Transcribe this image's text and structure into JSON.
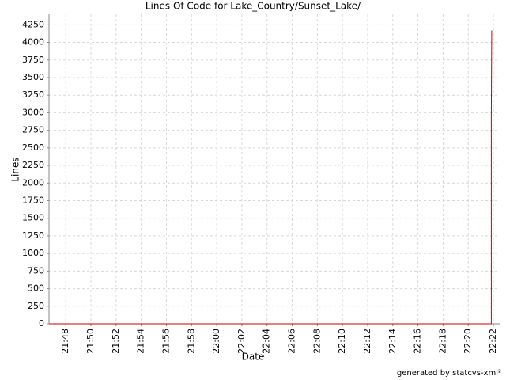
{
  "chart_data": {
    "type": "line",
    "title": "Lines Of Code for Lake_Country/Sunset_Lake/",
    "x_label": "Date",
    "y_label": "Lines",
    "footer": "generated by statcvs-xml²",
    "x": [
      "21:46:41",
      "22:21:50",
      "22:21:50",
      "22:21:52"
    ],
    "series": [
      {
        "name": "Lines",
        "color": "#cc0000",
        "values": [
          0,
          0,
          2940,
          4170
        ]
      }
    ],
    "xlim": [
      "21:46:40",
      "22:22:30"
    ],
    "xticks": [
      "21:48",
      "21:50",
      "21:52",
      "21:54",
      "21:56",
      "21:58",
      "22:00",
      "22:02",
      "22:04",
      "22:06",
      "22:08",
      "22:10",
      "22:12",
      "22:14",
      "22:16",
      "22:18",
      "22:20",
      "22:22"
    ],
    "ylim": [
      0,
      4400
    ],
    "yticks": [
      0,
      250,
      500,
      750,
      1000,
      1250,
      1500,
      1750,
      2000,
      2250,
      2500,
      2750,
      3000,
      3250,
      3500,
      3750,
      4000,
      4250
    ],
    "grid": true
  }
}
